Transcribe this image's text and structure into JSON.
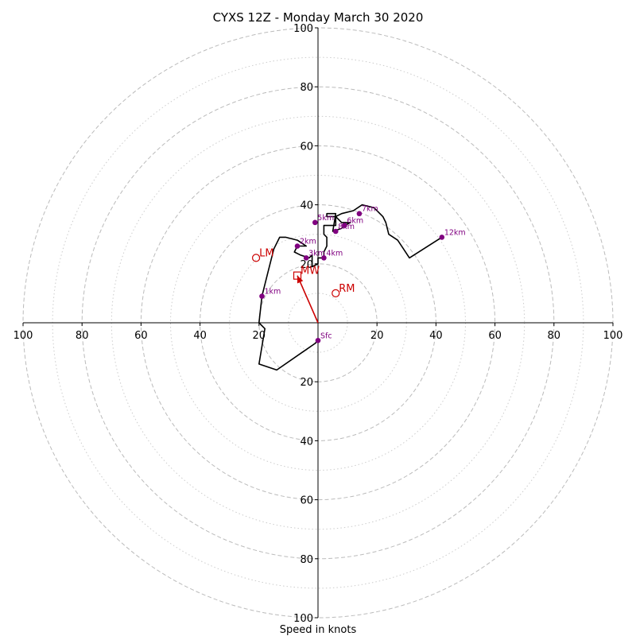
{
  "chart_data": {
    "type": "hodograph",
    "title": "CYXS 12Z - Monday March 30 2020",
    "xlabel": "Speed in knots",
    "xlim": [
      -100,
      100
    ],
    "ylim": [
      -100,
      100
    ],
    "x_tick_labels": [
      "100",
      "80",
      "60",
      "40",
      "20",
      "20",
      "40",
      "60",
      "80",
      "100"
    ],
    "y_tick_labels": [
      "100",
      "80",
      "60",
      "40",
      "20",
      "20",
      "40",
      "60",
      "80",
      "100"
    ],
    "ring_speeds_dashed": [
      20,
      40,
      60,
      80,
      100
    ],
    "ring_speeds_dotted": [
      10,
      30,
      50,
      70,
      90
    ],
    "hodograph_line": {
      "color": "#000000",
      "points": [
        [
          0,
          -6
        ],
        [
          -1,
          -7
        ],
        [
          -14,
          -16
        ],
        [
          -20,
          -14
        ],
        [
          -18,
          -2
        ],
        [
          -20,
          0
        ],
        [
          -19,
          9
        ],
        [
          -17,
          17
        ],
        [
          -15,
          25
        ],
        [
          -13,
          29
        ],
        [
          -11,
          29
        ],
        [
          -7,
          28
        ],
        [
          -4,
          26
        ],
        [
          -7,
          26
        ],
        [
          -8,
          24
        ],
        [
          -6,
          23
        ],
        [
          -3,
          22
        ],
        [
          -2,
          23
        ],
        [
          -2,
          19
        ],
        [
          0,
          20
        ],
        [
          0,
          22
        ],
        [
          2,
          22
        ],
        [
          2,
          24
        ],
        [
          3,
          26
        ],
        [
          3,
          29
        ],
        [
          2,
          30
        ],
        [
          2,
          33
        ],
        [
          6,
          33
        ],
        [
          6,
          36
        ],
        [
          3,
          36
        ],
        [
          3,
          37
        ],
        [
          6,
          37
        ],
        [
          5,
          31
        ],
        [
          8,
          32
        ],
        [
          9,
          33
        ],
        [
          11,
          34
        ],
        [
          8,
          34
        ],
        [
          6,
          36
        ],
        [
          8,
          37
        ],
        [
          12,
          38
        ],
        [
          15,
          40
        ],
        [
          19,
          39
        ],
        [
          22,
          36
        ],
        [
          23,
          34
        ],
        [
          24,
          30
        ],
        [
          27,
          28
        ],
        [
          31,
          22
        ],
        [
          42,
          29
        ]
      ]
    },
    "height_markers": {
      "color": "#800080",
      "points": [
        {
          "label": "Sfc",
          "u": 0,
          "v": -6
        },
        {
          "label": "1km",
          "u": -19,
          "v": 9
        },
        {
          "label": "2km",
          "u": -7,
          "v": 26
        },
        {
          "label": "3km",
          "u": -4,
          "v": 22
        },
        {
          "label": "4km",
          "u": 2,
          "v": 22
        },
        {
          "label": "5km",
          "u": -1,
          "v": 34
        },
        {
          "label": "6km",
          "u": 9,
          "v": 33
        },
        {
          "label": "7km",
          "u": 14,
          "v": 37
        },
        {
          "label": "8km",
          "u": 6,
          "v": 31
        },
        {
          "label": "12km",
          "u": 42,
          "v": 29
        }
      ]
    },
    "storm_motion": {
      "color": "#cc0000",
      "markers": [
        {
          "label": "LM",
          "u": -21,
          "v": 22,
          "shape": "circle"
        },
        {
          "label": "RM",
          "u": 6,
          "v": 10,
          "shape": "circle"
        },
        {
          "label": "MW",
          "u": -7,
          "v": 16,
          "shape": "square"
        }
      ],
      "vector": {
        "from": [
          0,
          0
        ],
        "to": [
          -7,
          16
        ]
      }
    }
  }
}
